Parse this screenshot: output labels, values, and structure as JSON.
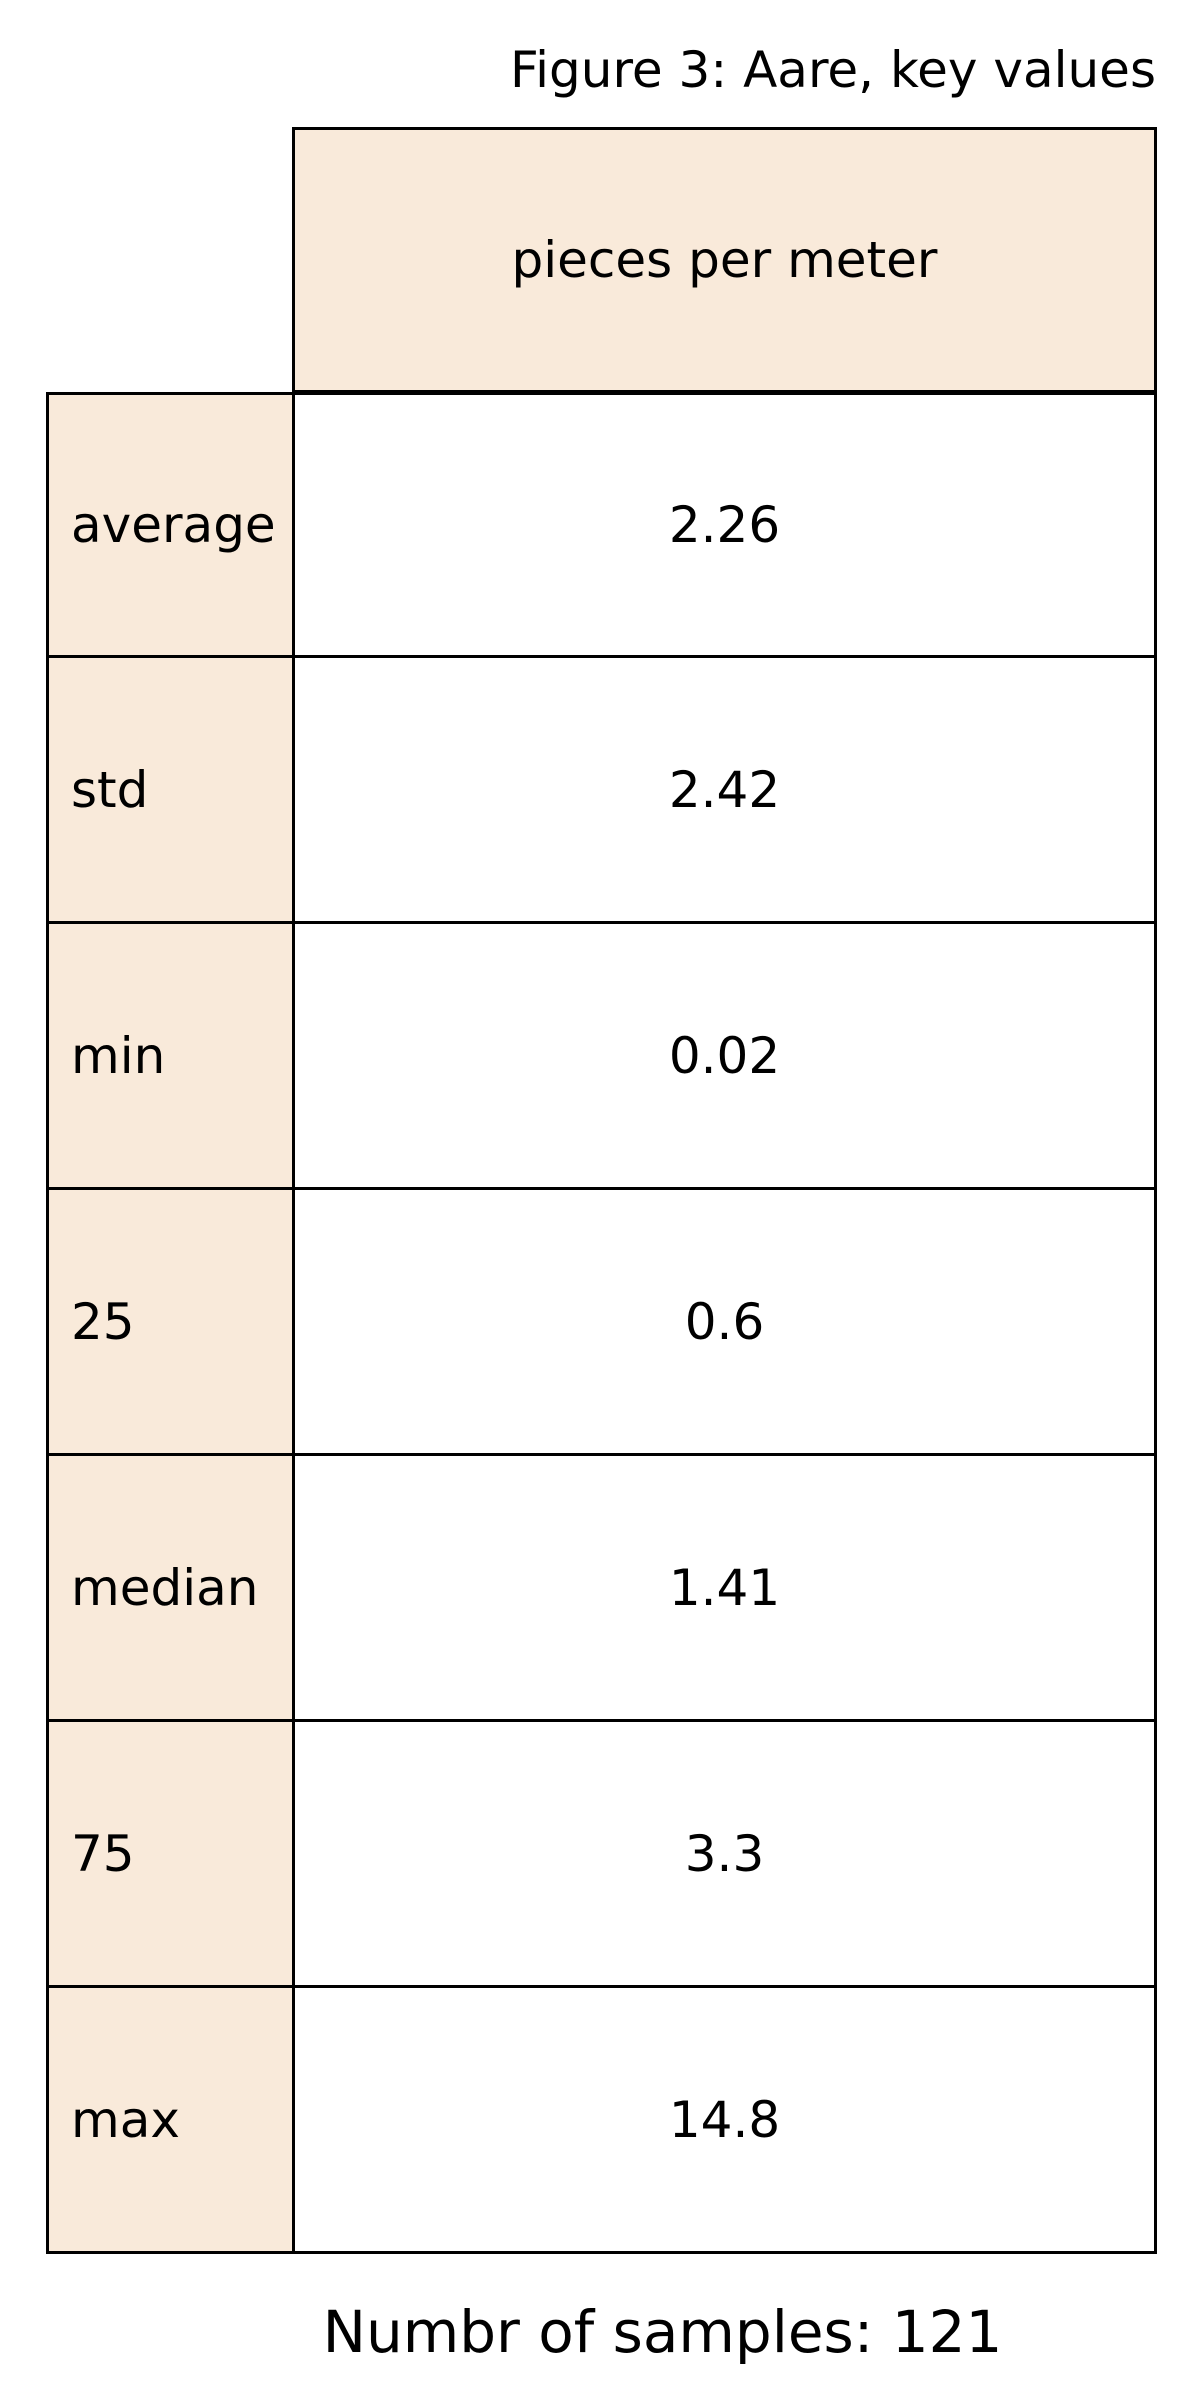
{
  "title": "Figure 3: Aare, key values",
  "footer": "Numbr of samples: 121",
  "chart_data": {
    "type": "table",
    "title": "Figure 3: Aare, key values",
    "columns": [
      "pieces per meter"
    ],
    "rows": [
      {
        "label": "average",
        "value": "2.26"
      },
      {
        "label": "std",
        "value": "2.42"
      },
      {
        "label": "min",
        "value": "0.02"
      },
      {
        "label": "25",
        "value": "0.6"
      },
      {
        "label": "median",
        "value": "1.41"
      },
      {
        "label": "75",
        "value": "3.3"
      },
      {
        "label": "max",
        "value": "14.8"
      }
    ],
    "header_color": "#f9eada"
  }
}
